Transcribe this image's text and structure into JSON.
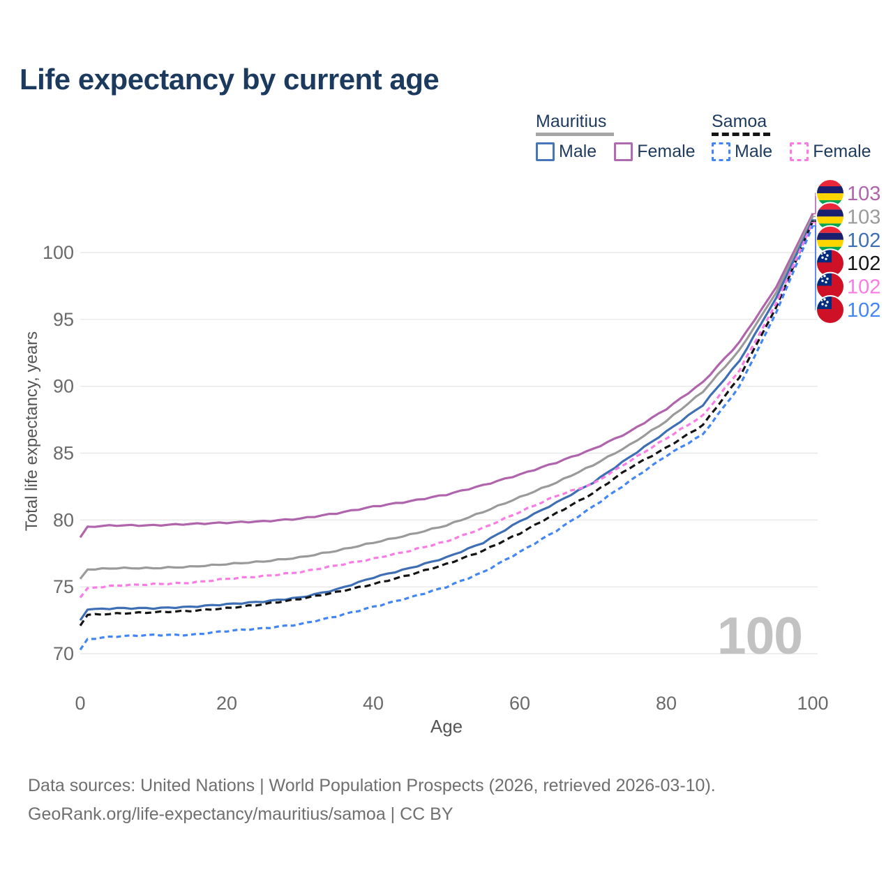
{
  "title": "Life expectancy by current age",
  "legend": {
    "groups": [
      {
        "name": "Mauritius",
        "underline_style": "solid",
        "underline_color": "#a6a6a6",
        "items": [
          {
            "label": "Male",
            "color": "#4576b5",
            "style": "solid"
          },
          {
            "label": "Female",
            "color": "#b06ab0",
            "style": "solid"
          }
        ]
      },
      {
        "name": "Samoa",
        "underline_style": "dashed",
        "underline_color": "#141414",
        "items": [
          {
            "label": "Male",
            "color": "#4285f4",
            "style": "dashed"
          },
          {
            "label": "Female",
            "color": "#fb7be4",
            "style": "dashed"
          }
        ]
      }
    ]
  },
  "chart_data": {
    "type": "line",
    "title": "Life expectancy by current age",
    "xlabel": "Age",
    "ylabel": "Total life expectancy, years",
    "xlim": [
      0,
      100
    ],
    "ylim": [
      70,
      100
    ],
    "xticks": [
      0,
      20,
      40,
      60,
      80,
      100
    ],
    "yticks": [
      70,
      75,
      80,
      85,
      90,
      95,
      100
    ],
    "grid": "horizontal-only",
    "legend_position": "top-right",
    "watermark": "100",
    "x": [
      0,
      1,
      5,
      10,
      15,
      20,
      25,
      30,
      35,
      40,
      45,
      50,
      55,
      60,
      65,
      70,
      75,
      80,
      85,
      90,
      95,
      100
    ],
    "series": [
      {
        "name": "Mauritius Female",
        "country": "mauritius",
        "sex": "female",
        "color": "#af64ac",
        "dash": "solid",
        "rank": 0,
        "end_label": "103",
        "values": [
          78.7,
          79.5,
          79.6,
          79.6,
          79.7,
          79.8,
          79.9,
          80.1,
          80.5,
          81.0,
          81.4,
          81.9,
          82.6,
          83.4,
          84.3,
          85.3,
          86.6,
          88.3,
          90.3,
          93.3,
          97.4,
          102.9
        ]
      },
      {
        "name": "Mauritius Both sexes",
        "country": "mauritius",
        "sex": "both",
        "color": "#9a9a9a",
        "dash": "solid",
        "rank": 1,
        "end_label": "103",
        "values": [
          75.6,
          76.3,
          76.4,
          76.4,
          76.5,
          76.7,
          76.9,
          77.2,
          77.7,
          78.3,
          78.9,
          79.6,
          80.6,
          81.7,
          82.8,
          84.1,
          85.6,
          87.4,
          89.6,
          92.7,
          97.0,
          102.7
        ]
      },
      {
        "name": "Mauritius Male",
        "country": "mauritius",
        "sex": "male",
        "color": "#3e6fb4",
        "dash": "solid",
        "rank": 2,
        "end_label": "102",
        "values": [
          72.5,
          73.3,
          73.4,
          73.4,
          73.5,
          73.7,
          73.9,
          74.2,
          74.8,
          75.7,
          76.4,
          77.2,
          78.3,
          79.9,
          81.3,
          82.8,
          84.7,
          86.6,
          88.6,
          91.9,
          96.6,
          102.45
        ]
      },
      {
        "name": "Samoa Both sexes",
        "country": "samoa",
        "sex": "both",
        "color": "#141414",
        "dash": "dashed",
        "rank": 3,
        "end_label": "102",
        "values": [
          72.1,
          72.9,
          73.0,
          73.1,
          73.2,
          73.4,
          73.7,
          74.1,
          74.6,
          75.2,
          75.9,
          76.7,
          77.7,
          79.0,
          80.5,
          82.0,
          83.9,
          85.4,
          87.1,
          90.7,
          95.9,
          102.35
        ]
      },
      {
        "name": "Samoa Female",
        "country": "samoa",
        "sex": "female",
        "color": "#fb7be4",
        "dash": "dashed",
        "rank": 4,
        "end_label": "102",
        "values": [
          74.2,
          74.9,
          75.1,
          75.2,
          75.3,
          75.6,
          75.8,
          76.1,
          76.6,
          77.1,
          77.7,
          78.4,
          79.4,
          80.6,
          81.8,
          82.7,
          84.4,
          86.1,
          87.8,
          91.2,
          96.2,
          102.25
        ]
      },
      {
        "name": "Samoa Male",
        "country": "samoa",
        "sex": "male",
        "color": "#4285f4",
        "dash": "dashed",
        "rank": 5,
        "end_label": "102",
        "values": [
          70.3,
          71.1,
          71.3,
          71.4,
          71.4,
          71.7,
          71.9,
          72.2,
          72.8,
          73.5,
          74.2,
          75.0,
          76.1,
          77.6,
          79.2,
          81.0,
          82.9,
          84.8,
          86.4,
          90.0,
          95.5,
          102.0
        ]
      }
    ],
    "flag_colors": {
      "mauritius": {
        "stripes": [
          "#ea2839",
          "#1a206d",
          "#ffd500",
          "#00a551"
        ]
      },
      "samoa": {
        "bg": "#ce1126",
        "canton": "#002b7f",
        "stars": "#ffffff"
      }
    },
    "colors": {
      "grid": "#e8e8e8",
      "tick_text": "#6a6a6a",
      "axis_title": "#555555",
      "watermark": "#c2c2c2",
      "title_text": "#1b3a5e"
    }
  },
  "footer": {
    "line1": "Data sources: United Nations | World Population Prospects (2026, retrieved 2026-03-10).",
    "line2": "GeoRank.org/life-expectancy/mauritius/samoa | CC BY"
  }
}
